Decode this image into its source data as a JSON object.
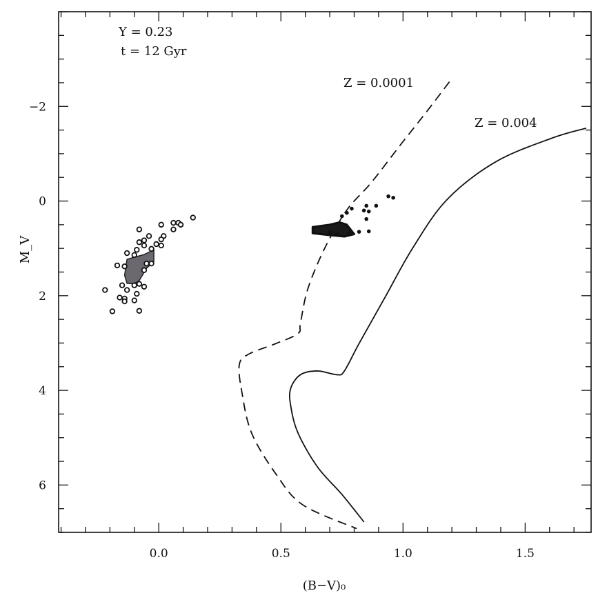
{
  "chart_data": {
    "type": "scatter",
    "title": "",
    "xlabel": "(B−V)₀",
    "ylabel": "M_V",
    "xlim": [
      -0.41,
      1.77
    ],
    "ylim": [
      7.0,
      -4.0
    ],
    "y_inverted": true,
    "grid": false,
    "x_ticks": [
      0.0,
      0.5,
      1.0,
      1.5
    ],
    "x_tick_labels": [
      "0.0",
      "0.5",
      "1.0",
      "1.5"
    ],
    "y_ticks": [
      -2,
      0,
      2,
      4,
      6
    ],
    "y_tick_labels": [
      "−2",
      "0",
      "2",
      "4",
      "6"
    ],
    "annotations": {
      "helium": "Y = 0.23",
      "age": "t = 12 Gyr"
    },
    "series": [
      {
        "name": "Z=0.0001",
        "label": "Z = 0.0001",
        "kind": "isochrone",
        "style": "dashed",
        "points": [
          [
            1.19,
            -2.52
          ],
          [
            1.1,
            -1.91
          ],
          [
            0.99,
            -1.19
          ],
          [
            0.87,
            -0.39
          ],
          [
            0.77,
            0.19
          ],
          [
            0.68,
            0.99
          ],
          [
            0.61,
            1.86
          ],
          [
            0.58,
            2.58
          ],
          [
            0.57,
            2.8
          ],
          [
            0.48,
            3.01
          ],
          [
            0.37,
            3.23
          ],
          [
            0.33,
            3.45
          ],
          [
            0.34,
            4.03
          ],
          [
            0.38,
            4.9
          ],
          [
            0.48,
            5.77
          ],
          [
            0.59,
            6.42
          ],
          [
            0.81,
            6.92
          ]
        ]
      },
      {
        "name": "Z=0.004",
        "label": "Z = 0.004",
        "kind": "isochrone",
        "style": "solid",
        "points": [
          [
            1.75,
            -1.54
          ],
          [
            1.61,
            -1.33
          ],
          [
            1.38,
            -0.83
          ],
          [
            1.18,
            -0.03
          ],
          [
            1.04,
            0.99
          ],
          [
            0.93,
            2.0
          ],
          [
            0.82,
            3.01
          ],
          [
            0.76,
            3.59
          ],
          [
            0.73,
            3.67
          ],
          [
            0.65,
            3.59
          ],
          [
            0.58,
            3.67
          ],
          [
            0.54,
            3.96
          ],
          [
            0.54,
            4.32
          ],
          [
            0.57,
            4.9
          ],
          [
            0.65,
            5.62
          ],
          [
            0.75,
            6.2
          ],
          [
            0.84,
            6.78
          ]
        ]
      },
      {
        "name": "blue horizontal branch stars",
        "kind": "open-circles",
        "points": [
          [
            0.14,
            0.35
          ],
          [
            0.01,
            0.5
          ],
          [
            0.06,
            0.46
          ],
          [
            0.08,
            0.46
          ],
          [
            0.09,
            0.5
          ],
          [
            0.06,
            0.6
          ],
          [
            -0.08,
            0.6
          ],
          [
            0.02,
            0.74
          ],
          [
            -0.04,
            0.74
          ],
          [
            -0.06,
            0.83
          ],
          [
            -0.08,
            0.87
          ],
          [
            0.01,
            0.81
          ],
          [
            0.01,
            0.94
          ],
          [
            -0.01,
            0.91
          ],
          [
            -0.06,
            0.94
          ],
          [
            -0.09,
            1.03
          ],
          [
            -0.13,
            1.1
          ],
          [
            -0.1,
            1.14
          ],
          [
            -0.03,
            1.01
          ],
          [
            -0.17,
            1.36
          ],
          [
            -0.14,
            1.38
          ],
          [
            -0.05,
            1.32
          ],
          [
            -0.03,
            1.32
          ],
          [
            -0.06,
            1.46
          ],
          [
            -0.15,
            1.78
          ],
          [
            -0.13,
            1.88
          ],
          [
            -0.1,
            1.78
          ],
          [
            -0.08,
            1.75
          ],
          [
            -0.06,
            1.81
          ],
          [
            -0.22,
            1.88
          ],
          [
            -0.09,
            1.96
          ],
          [
            -0.16,
            2.04
          ],
          [
            -0.14,
            2.06
          ],
          [
            -0.14,
            2.12
          ],
          [
            -0.1,
            2.1
          ],
          [
            -0.19,
            2.33
          ],
          [
            -0.08,
            2.32
          ]
        ],
        "density_region": [
          [
            -0.13,
            1.23
          ],
          [
            -0.06,
            1.13
          ],
          [
            -0.02,
            1.03
          ],
          [
            -0.02,
            1.28
          ],
          [
            -0.05,
            1.42
          ],
          [
            -0.08,
            1.68
          ],
          [
            -0.1,
            1.75
          ],
          [
            -0.13,
            1.74
          ],
          [
            -0.14,
            1.57
          ]
        ]
      },
      {
        "name": "red horizontal branch stars",
        "kind": "filled-circles",
        "points": [
          [
            0.94,
            -0.1
          ],
          [
            0.96,
            -0.07
          ],
          [
            0.85,
            0.1
          ],
          [
            0.89,
            0.1
          ],
          [
            0.84,
            0.2
          ],
          [
            0.86,
            0.22
          ],
          [
            0.85,
            0.38
          ],
          [
            0.79,
            0.16
          ],
          [
            0.77,
            0.25
          ],
          [
            0.75,
            0.32
          ],
          [
            0.82,
            0.65
          ],
          [
            0.86,
            0.64
          ],
          [
            0.78,
            0.68
          ],
          [
            0.73,
            0.7
          ],
          [
            0.7,
            0.66
          ]
        ],
        "density_region": [
          [
            0.63,
            0.55
          ],
          [
            0.7,
            0.5
          ],
          [
            0.74,
            0.45
          ],
          [
            0.77,
            0.5
          ],
          [
            0.8,
            0.7
          ],
          [
            0.76,
            0.75
          ],
          [
            0.7,
            0.72
          ],
          [
            0.63,
            0.68
          ]
        ]
      }
    ]
  }
}
